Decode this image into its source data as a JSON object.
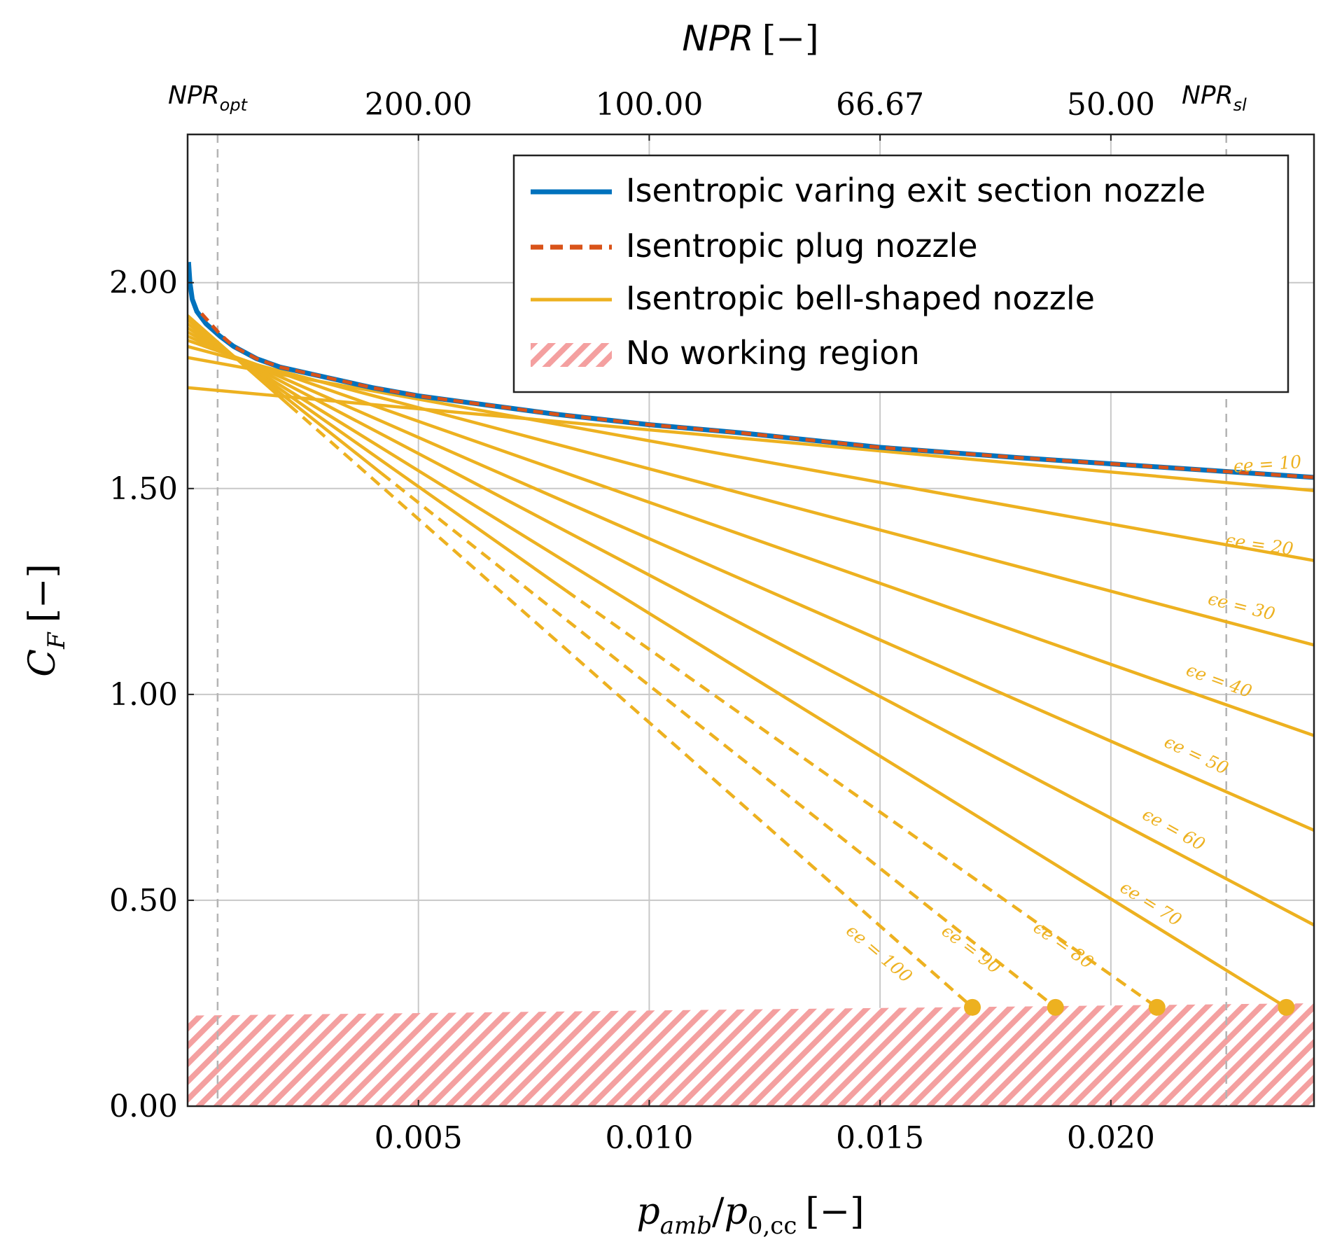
{
  "chart_data": {
    "type": "line",
    "top_axis": {
      "label_main": "NPR",
      "label_unit": "[−]",
      "tick_values": [
        0.005,
        0.01,
        0.015,
        0.02
      ],
      "tick_labels": [
        "200.00",
        "100.00",
        "66.67",
        "50.00"
      ],
      "npr_opt": {
        "x": 0.00065,
        "label": "NPR",
        "sub": "opt"
      },
      "npr_sl": {
        "x": 0.0225,
        "label": "NPR",
        "sub": "sl"
      }
    },
    "xlabel": {
      "p": "p",
      "sub1": "amb",
      "slash": "/",
      "p2": "p",
      "sub2": "0,cc",
      "unit": "[−]"
    },
    "ylabel": {
      "c": "C",
      "sub": "F",
      "unit": "[−]"
    },
    "xlim": [
      0.0,
      0.0244
    ],
    "ylim": [
      0.0,
      2.36
    ],
    "x_ticks": [
      0.005,
      0.01,
      0.015,
      0.02
    ],
    "x_tick_labels": [
      "0.005",
      "0.010",
      "0.015",
      "0.020"
    ],
    "y_ticks": [
      0.0,
      0.5,
      1.0,
      1.5,
      2.0
    ],
    "y_tick_labels": [
      "0.00",
      "0.50",
      "1.00",
      "1.50",
      "2.00"
    ],
    "legend": {
      "position": "top-right",
      "entries": [
        "Isentropic varing exit section nozzle",
        "Isentropic plug nozzle",
        "Isentropic bell-shaped nozzle",
        "No working region"
      ]
    },
    "colors": {
      "varying": "#0072bd",
      "plug": "#d95319",
      "bell": "#edb120",
      "hatch": "#f4a0a0",
      "grid": "#c8c8c8",
      "ref_line": "#b4b4b4",
      "axes": "#222222"
    },
    "series": [
      {
        "name": "Isentropic varing exit section nozzle",
        "x": [
          2e-05,
          5e-05,
          0.0001,
          0.0002,
          0.0004,
          0.0007,
          0.001,
          0.0015,
          0.002,
          0.003,
          0.004,
          0.005,
          0.006,
          0.008,
          0.01,
          0.012,
          0.015,
          0.018,
          0.02,
          0.022,
          0.0244
        ],
        "y": [
          2.05,
          2.0,
          1.96,
          1.93,
          1.9,
          1.87,
          1.845,
          1.815,
          1.795,
          1.77,
          1.745,
          1.725,
          1.71,
          1.68,
          1.655,
          1.635,
          1.6,
          1.575,
          1.56,
          1.545,
          1.527
        ]
      },
      {
        "name": "Isentropic plug nozzle",
        "x": [
          0.0003,
          0.0005,
          0.0007,
          0.001,
          0.0015,
          0.002,
          0.003,
          0.004,
          0.005,
          0.006,
          0.008,
          0.01,
          0.012,
          0.015,
          0.018,
          0.02,
          0.022,
          0.0244
        ],
        "y": [
          1.925,
          1.9,
          1.875,
          1.845,
          1.815,
          1.795,
          1.77,
          1.745,
          1.725,
          1.71,
          1.68,
          1.655,
          1.635,
          1.6,
          1.575,
          1.56,
          1.545,
          1.527
        ]
      }
    ],
    "bell_nozzles": [
      {
        "eps": 10,
        "label": "ϵe = 10",
        "y_start": 1.745,
        "x_end": 0.0244,
        "y_end": 1.495,
        "dash_from": null,
        "endpoint": false,
        "label_x": 0.0234,
        "label_y": 1.545,
        "label_angle": -4
      },
      {
        "eps": 20,
        "label": "ϵe = 20",
        "y_start": 1.818,
        "x_end": 0.0244,
        "y_end": 1.325,
        "dash_from": null,
        "endpoint": false,
        "label_x": 0.0232,
        "label_y": 1.35,
        "label_angle": 8
      },
      {
        "eps": 30,
        "label": "ϵe = 30",
        "y_start": 1.845,
        "x_end": 0.0244,
        "y_end": 1.12,
        "dash_from": null,
        "endpoint": false,
        "label_x": 0.0228,
        "label_y": 1.2,
        "label_angle": 14
      },
      {
        "eps": 40,
        "label": "ϵe = 40",
        "y_start": 1.86,
        "x_end": 0.0244,
        "y_end": 0.9,
        "dash_from": null,
        "endpoint": false,
        "label_x": 0.0223,
        "label_y": 1.02,
        "label_angle": 20
      },
      {
        "eps": 50,
        "label": "ϵe = 50",
        "y_start": 1.87,
        "x_end": 0.0244,
        "y_end": 0.67,
        "dash_from": null,
        "endpoint": false,
        "label_x": 0.0218,
        "label_y": 0.84,
        "label_angle": 25
      },
      {
        "eps": 60,
        "label": "ϵe = 60",
        "y_start": 1.88,
        "x_end": 0.0244,
        "y_end": 0.44,
        "dash_from": null,
        "endpoint": false,
        "label_x": 0.0213,
        "label_y": 0.66,
        "label_angle": 29
      },
      {
        "eps": 70,
        "label": "ϵe = 70",
        "y_start": 1.89,
        "x_end": 0.0238,
        "y_end": 0.24,
        "dash_from": null,
        "endpoint": true,
        "label_x": 0.0208,
        "label_y": 0.48,
        "label_angle": 32
      },
      {
        "eps": 80,
        "label": "ϵe = 80",
        "y_start": 1.9,
        "x_end": 0.021,
        "y_end": 0.24,
        "dash_from": 0.0082,
        "endpoint": true,
        "label_x": 0.0189,
        "label_y": 0.38,
        "label_angle": 35
      },
      {
        "eps": 90,
        "label": "ϵe = 90",
        "y_start": 1.91,
        "x_end": 0.0188,
        "y_end": 0.24,
        "dash_from": 0.0042,
        "endpoint": true,
        "label_x": 0.0169,
        "label_y": 0.37,
        "label_angle": 37
      },
      {
        "eps": 100,
        "label": "ϵe = 100",
        "y_start": 1.92,
        "x_end": 0.017,
        "y_end": 0.24,
        "dash_from": 0.0022,
        "endpoint": true,
        "label_x": 0.0149,
        "label_y": 0.36,
        "label_angle": 40
      }
    ],
    "no_working_region": {
      "x": [
        0.0,
        0.0244
      ],
      "y_top": [
        0.22,
        0.25
      ]
    }
  }
}
